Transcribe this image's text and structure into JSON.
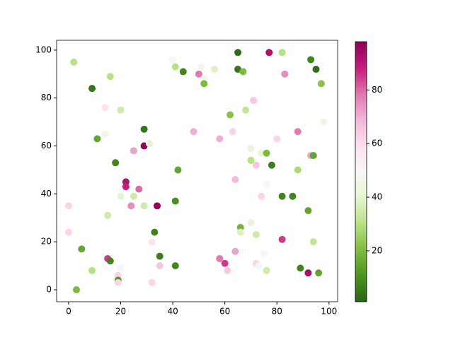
{
  "chart_data": {
    "type": "scatter",
    "x": [
      2,
      9,
      16,
      40,
      41,
      44,
      51,
      56,
      52,
      52,
      50,
      65,
      65,
      67,
      77,
      82,
      93,
      95,
      83,
      97,
      98,
      14,
      20,
      68,
      71,
      62,
      11,
      14,
      29,
      48,
      63,
      58,
      80,
      88,
      25,
      29,
      31,
      70,
      74,
      76,
      93,
      94,
      70,
      72,
      78,
      88,
      18,
      42,
      22,
      22,
      64,
      27,
      76,
      20,
      25,
      74,
      82,
      86,
      41,
      0,
      24,
      29,
      34,
      92,
      15,
      70,
      66,
      66,
      72,
      0,
      33,
      32,
      94,
      82,
      5,
      64,
      75,
      35,
      15,
      16,
      58,
      60,
      72,
      73,
      35,
      41,
      20,
      89,
      9,
      61,
      76,
      19,
      92,
      96,
      19,
      19,
      32,
      3
    ],
    "y": [
      95,
      84,
      89,
      96,
      93,
      91,
      93,
      92,
      88,
      86,
      90,
      99,
      92,
      91,
      99,
      99,
      96,
      92,
      90,
      86,
      70,
      76,
      75,
      75,
      79,
      73,
      63,
      65,
      67,
      66,
      66,
      63,
      63,
      66,
      58,
      60,
      61,
      59,
      57,
      57,
      56,
      56,
      54,
      52,
      52,
      50,
      53,
      50,
      45,
      43,
      46,
      42,
      44,
      39,
      39,
      39,
      39,
      39,
      37,
      35,
      35,
      35,
      35,
      33,
      31,
      28,
      26,
      24,
      23,
      24,
      24,
      20,
      20,
      21,
      17,
      16,
      15,
      14,
      13,
      12,
      13,
      11,
      11,
      10,
      10,
      10,
      9,
      9,
      8,
      8,
      8,
      6,
      7,
      7,
      4,
      3,
      3,
      0
    ],
    "c": [
      30,
      5,
      30,
      50,
      30,
      8,
      48,
      38,
      45,
      20,
      78,
      3,
      5,
      20,
      92,
      30,
      8,
      3,
      75,
      22,
      45,
      58,
      35,
      32,
      65,
      22,
      15,
      45,
      5,
      70,
      62,
      70,
      62,
      78,
      72,
      97,
      40,
      42,
      42,
      20,
      72,
      15,
      30,
      65,
      6,
      28,
      8,
      15,
      92,
      88,
      68,
      80,
      50,
      40,
      35,
      62,
      8,
      8,
      10,
      62,
      75,
      35,
      97,
      15,
      35,
      42,
      18,
      38,
      35,
      62,
      8,
      58,
      32,
      85,
      15,
      72,
      50,
      6,
      85,
      8,
      78,
      85,
      62,
      48,
      65,
      8,
      50,
      8,
      30,
      65,
      35,
      62,
      93,
      15,
      12,
      62,
      62,
      20
    ],
    "xlim": [
      -4.6,
      103.3
    ],
    "ylim": [
      -5.0,
      104.1
    ],
    "xticks": [
      0,
      20,
      40,
      60,
      80,
      100
    ],
    "yticks": [
      0,
      20,
      40,
      60,
      80,
      100
    ],
    "colormap": [
      "#276419",
      "#4d9221",
      "#7fbc41",
      "#b8e186",
      "#e6f5d0",
      "#f7f7f7",
      "#fde0ef",
      "#f1b6da",
      "#de77ae",
      "#c51b7d",
      "#8e0152"
    ],
    "clim": [
      1,
      98
    ],
    "colorbar_ticks": [
      20,
      40,
      60,
      80
    ]
  }
}
